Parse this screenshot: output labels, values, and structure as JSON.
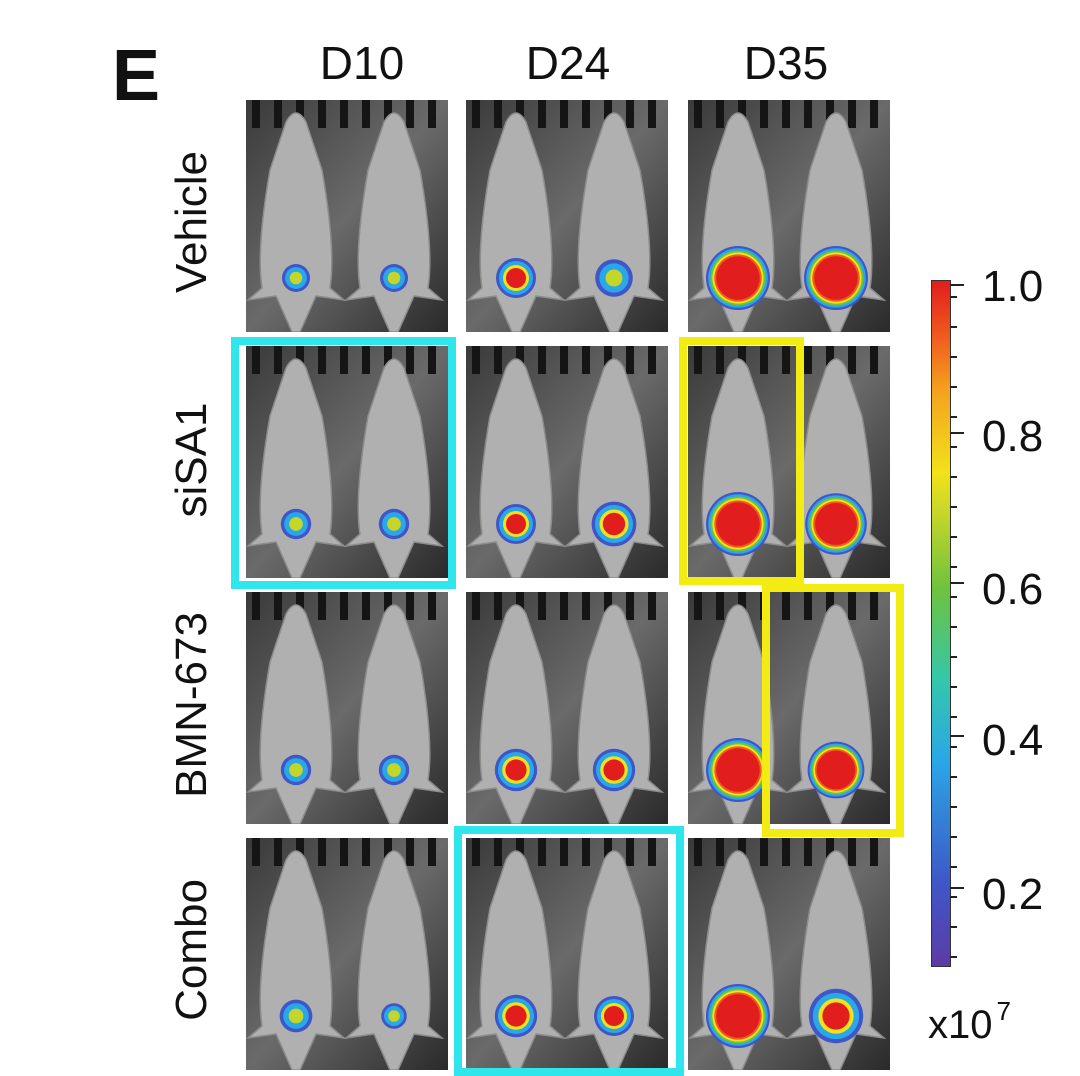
{
  "panel_letter": "E",
  "columns": [
    "D10",
    "D24",
    "D35"
  ],
  "rows": [
    "Vehicle",
    "siSA1",
    "BMN-673",
    "Combo"
  ],
  "colorbar": {
    "ticks": [
      "1.0",
      "0.8",
      "0.6",
      "0.4",
      "0.2"
    ],
    "scale_base": "x10",
    "scale_exponent": "7",
    "colors": [
      "#5c3ba6",
      "#3f56c8",
      "#2aa7e6",
      "#6ec23e",
      "#f2e21a",
      "#f4a21e",
      "#e11d1d"
    ]
  },
  "highlight_colors": {
    "cyan": "#2ee6ec",
    "yellow": "#f2ec12"
  }
}
